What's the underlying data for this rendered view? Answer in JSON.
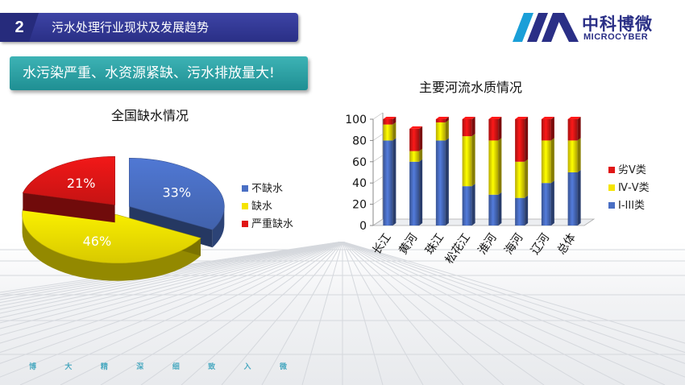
{
  "header": {
    "number": "2",
    "title": "污水处理行业现状及发展趋势"
  },
  "logo": {
    "cn": "中科博微",
    "en": "MICROCYBER"
  },
  "banner": {
    "text": "水污染严重、水资源紧缺、污水排放量大!"
  },
  "colors": {
    "blue": "#4a6fc4",
    "yellow": "#f5e400",
    "red": "#e01616",
    "header": "#2f3592",
    "banner": "#2aa2a6"
  },
  "chart_data": [
    {
      "type": "pie",
      "title": "全国缺水情况",
      "slices": [
        {
          "label": "不缺水",
          "value": 33,
          "display": "33%"
        },
        {
          "label": "缺水",
          "value": 46,
          "display": "46%"
        },
        {
          "label": "严重缺水",
          "value": 21,
          "display": "21%"
        }
      ],
      "legend_position": "right"
    },
    {
      "type": "bar",
      "stacked": true,
      "title": "主要河流水质情况",
      "categories": [
        "长江",
        "黄河",
        "珠江",
        "松花江",
        "淮河",
        "海河",
        "辽河",
        "总体"
      ],
      "series": [
        {
          "name": "Ⅰ-III类",
          "values": [
            80,
            60,
            80,
            37,
            29,
            26,
            40,
            50
          ]
        },
        {
          "name": "Ⅳ-Ⅴ类",
          "values": [
            15,
            10,
            17,
            47,
            51,
            34,
            40,
            30
          ]
        },
        {
          "name": "劣Ⅴ类",
          "values": [
            5,
            21,
            3,
            16,
            20,
            40,
            20,
            20
          ]
        }
      ],
      "yticks": [
        0,
        20,
        40,
        60,
        80,
        100
      ],
      "ylim": [
        0,
        100
      ],
      "legend_position": "right"
    }
  ],
  "footer": {
    "mottos": [
      "博",
      "大",
      "精",
      "深",
      "细",
      "致",
      "入",
      "微"
    ]
  }
}
